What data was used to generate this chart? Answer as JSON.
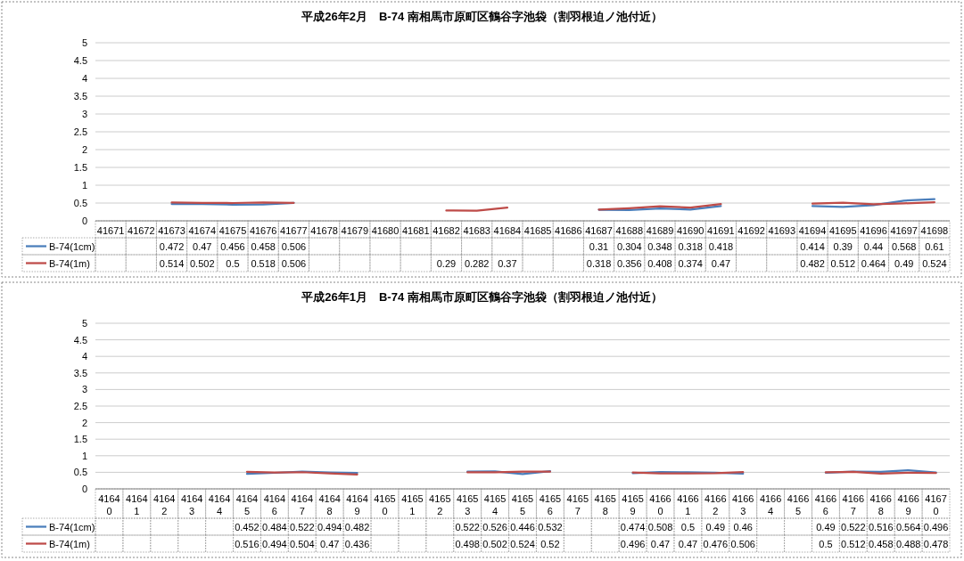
{
  "chart_data": [
    {
      "type": "line",
      "title": "平成26年2月　B-74 南相馬市原町区鶴谷字池袋（割羽根迫ノ池付近）",
      "categories": [
        "41671",
        "41672",
        "41673",
        "41674",
        "41675",
        "41676",
        "41677",
        "41678",
        "41679",
        "41680",
        "41681",
        "41682",
        "41683",
        "41684",
        "41685",
        "41686",
        "41687",
        "41688",
        "41689",
        "41690",
        "41691",
        "41692",
        "41693",
        "41694",
        "41695",
        "41696",
        "41697",
        "41698"
      ],
      "series": [
        {
          "name": "B-74(1cm)",
          "color": "#4a7ebb",
          "values": [
            null,
            null,
            0.472,
            0.47,
            0.456,
            0.458,
            0.506,
            null,
            null,
            null,
            null,
            null,
            null,
            null,
            null,
            null,
            0.31,
            0.304,
            0.348,
            0.318,
            0.418,
            null,
            null,
            0.414,
            0.39,
            0.44,
            0.568,
            0.61
          ]
        },
        {
          "name": "B-74(1m)",
          "color": "#be4b48",
          "values": [
            null,
            null,
            0.514,
            0.502,
            0.5,
            0.518,
            0.506,
            null,
            null,
            null,
            null,
            0.29,
            0.282,
            0.37,
            null,
            null,
            0.318,
            0.356,
            0.408,
            0.374,
            0.47,
            null,
            null,
            0.482,
            0.512,
            0.464,
            0.49,
            0.524
          ]
        }
      ],
      "ylim": [
        0,
        5
      ],
      "yticks": [
        0,
        0.5,
        1,
        1.5,
        2,
        2.5,
        3,
        3.5,
        4,
        4.5,
        5
      ],
      "grid": "y",
      "legend": "bottom",
      "data_labels": true
    },
    {
      "type": "line",
      "title": "平成26年1月　B-74 南相馬市原町区鶴谷字池袋（割羽根迫ノ池付近）",
      "categories": [
        "41640",
        "41641",
        "41642",
        "41643",
        "41644",
        "41645",
        "41646",
        "41647",
        "41648",
        "41649",
        "41650",
        "41651",
        "41652",
        "41653",
        "41654",
        "41655",
        "41656",
        "41657",
        "41658",
        "41659",
        "41660",
        "41661",
        "41662",
        "41663",
        "41664",
        "41665",
        "41666",
        "41667",
        "41668",
        "41669",
        "41670"
      ],
      "series": [
        {
          "name": "B-74(1cm)",
          "color": "#4a7ebb",
          "values": [
            null,
            null,
            null,
            null,
            null,
            0.452,
            0.484,
            0.522,
            0.494,
            0.482,
            null,
            null,
            null,
            0.522,
            0.526,
            0.446,
            0.532,
            null,
            null,
            0.474,
            0.508,
            0.5,
            0.49,
            0.46,
            null,
            null,
            0.49,
            0.522,
            0.516,
            0.564,
            0.496
          ]
        },
        {
          "name": "B-74(1m)",
          "color": "#be4b48",
          "values": [
            null,
            null,
            null,
            null,
            null,
            0.516,
            0.494,
            0.504,
            0.47,
            0.436,
            null,
            null,
            null,
            0.498,
            0.502,
            0.524,
            0.52,
            null,
            null,
            0.496,
            0.47,
            0.47,
            0.476,
            0.506,
            null,
            null,
            0.5,
            0.512,
            0.458,
            0.488,
            0.478
          ]
        }
      ],
      "ylim": [
        0,
        5
      ],
      "yticks": [
        0,
        0.5,
        1,
        1.5,
        2,
        2.5,
        3,
        3.5,
        4,
        4.5,
        5
      ],
      "grid": "y",
      "legend": "bottom",
      "data_labels": true
    }
  ]
}
